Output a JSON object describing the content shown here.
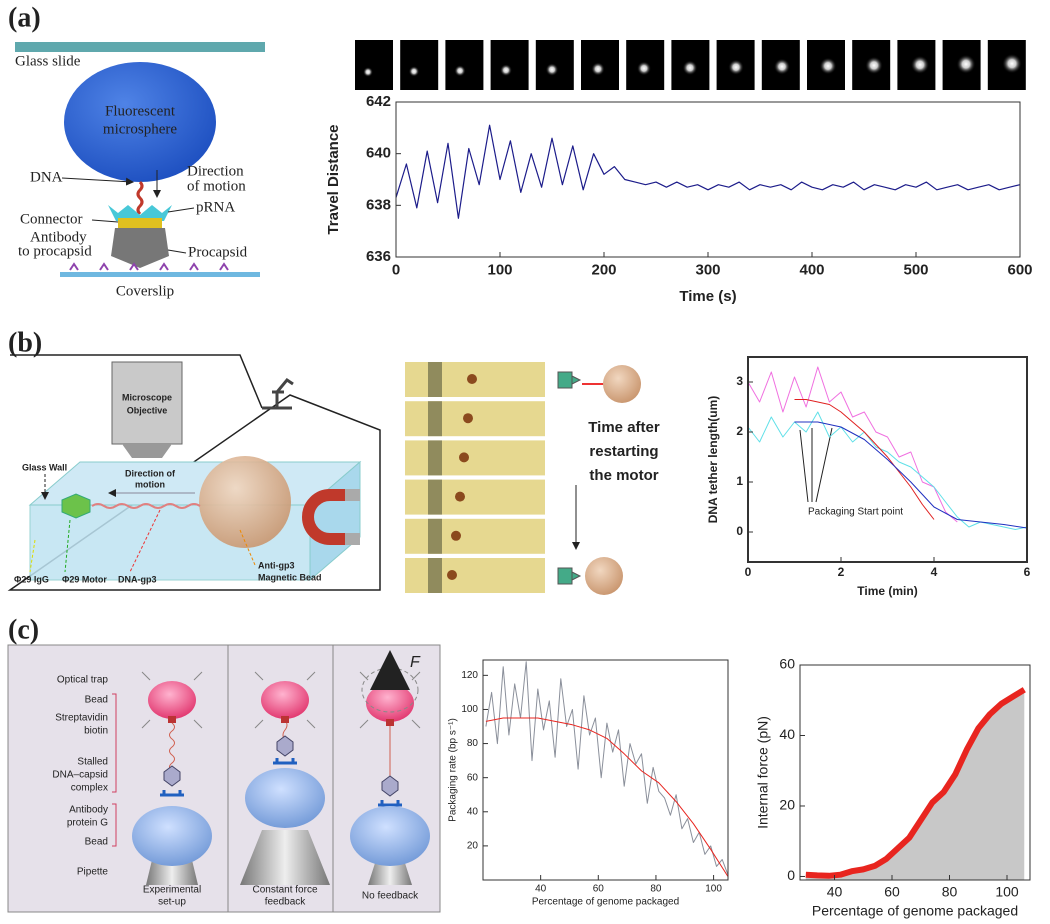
{
  "panels": {
    "a": {
      "label": "(a)",
      "glass_slide": "Glass slide",
      "microsphere": [
        "Fluorescent",
        "microsphere"
      ],
      "dna": "DNA",
      "direction": [
        "Direction",
        "of motion"
      ],
      "connector": "Connector",
      "prna": "pRNA",
      "antibody": [
        "Antibody",
        "to procapsid"
      ],
      "procapsid": "Procapsid",
      "coverslip": "Coverslip"
    },
    "b": {
      "label": "(b)",
      "objective": [
        "Microscope",
        "Objective"
      ],
      "glass_wall": "Glass Wall",
      "direction": [
        "Direction of",
        "motion"
      ],
      "igg": "Φ29 IgG",
      "motor": "Φ29 Motor",
      "dna_gp3": "DNA-gp3",
      "bead": [
        "Anti-gp3",
        "Magnetic Bead"
      ],
      "time": [
        "Time after",
        "restarting",
        "the motor"
      ]
    },
    "c": {
      "label": "(c)",
      "optical_trap": "Optical trap",
      "bead_top": "Bead",
      "strept": [
        "Streptavidin",
        "biotin"
      ],
      "complex": [
        "Stalled",
        "DNA–capsid",
        "complex"
      ],
      "antibody": [
        "Antibody",
        "protein G"
      ],
      "bead_bottom": "Bead",
      "pipette": "Pipette",
      "force": "F",
      "cap1": [
        "Experimental",
        "set-up"
      ],
      "cap2": [
        "Constant force",
        "feedback"
      ],
      "cap3": "No feedback"
    }
  },
  "chart_data": [
    {
      "type": "line",
      "xlabel": "Time (s)",
      "ylabel": "Travel Distance",
      "xlim": [
        0,
        600
      ],
      "ylim": [
        636,
        642
      ],
      "xticks": [
        0,
        100,
        200,
        300,
        400,
        500,
        600
      ],
      "yticks": [
        636,
        638,
        640,
        642
      ],
      "series": [
        {
          "color": "#1c1c8a",
          "x": [
            0,
            10,
            20,
            30,
            40,
            50,
            60,
            70,
            80,
            90,
            100,
            110,
            120,
            130,
            140,
            150,
            160,
            170,
            180,
            190,
            200,
            210,
            220,
            230,
            240,
            250,
            260,
            270,
            280,
            290,
            300,
            310,
            320,
            330,
            340,
            350,
            360,
            370,
            380,
            390,
            400,
            410,
            420,
            430,
            440,
            450,
            460,
            470,
            480,
            490,
            500,
            510,
            520,
            530,
            540,
            550,
            560,
            570,
            580,
            590,
            600
          ],
          "values": [
            638.3,
            639.6,
            637.9,
            640.1,
            638.1,
            640.4,
            637.5,
            640.2,
            638.8,
            641.1,
            639.0,
            640.5,
            638.5,
            640.0,
            638.7,
            640.6,
            638.8,
            640.3,
            638.6,
            640.0,
            639.2,
            639.5,
            639.0,
            638.9,
            638.8,
            638.9,
            638.7,
            638.9,
            638.7,
            638.8,
            638.6,
            638.8,
            638.7,
            638.9,
            638.6,
            638.8,
            638.7,
            638.8,
            638.6,
            638.9,
            638.7,
            638.6,
            638.8,
            638.7,
            638.9,
            638.6,
            638.8,
            638.7,
            638.6,
            638.8,
            638.7,
            638.9,
            638.6,
            638.7,
            638.8,
            638.6,
            638.7,
            638.8,
            638.6,
            638.7,
            638.8
          ]
        }
      ]
    },
    {
      "type": "line",
      "xlabel": "Time (min)",
      "ylabel": "DNA tether length(um)",
      "annotation": "Packaging Start point",
      "xlim": [
        0,
        6
      ],
      "ylim": [
        -0.6,
        3.5
      ],
      "xticks": [
        0,
        2,
        4,
        6
      ],
      "yticks": [
        0,
        1,
        2,
        3
      ],
      "series": [
        {
          "color": "#f070e0",
          "x": [
            0,
            0.25,
            0.5,
            0.75,
            1,
            1.25,
            1.5,
            1.75,
            2,
            2.25,
            2.5,
            2.75,
            3,
            3.25,
            3.5,
            3.75,
            4,
            4.25,
            4.5
          ],
          "values": [
            3.0,
            2.6,
            3.2,
            2.4,
            3.1,
            2.5,
            3.3,
            2.6,
            2.8,
            2.3,
            2.4,
            2.0,
            1.9,
            1.5,
            1.6,
            1.0,
            0.9,
            0.4,
            0.2
          ]
        },
        {
          "color": "#60e0e8",
          "x": [
            0,
            0.25,
            0.5,
            0.75,
            1,
            1.25,
            1.5,
            1.75,
            2,
            2.25,
            2.5,
            2.75,
            3,
            3.25,
            3.5,
            3.75,
            4,
            4.25,
            4.5,
            4.75,
            5,
            5.25,
            5.5,
            5.75,
            6
          ],
          "values": [
            2.1,
            1.8,
            2.3,
            1.9,
            2.2,
            2.0,
            2.4,
            1.9,
            2.1,
            1.8,
            2.0,
            1.7,
            1.6,
            1.4,
            1.3,
            1.1,
            0.9,
            0.6,
            0.3,
            0.1,
            0.2,
            0.15,
            0.1,
            0.05,
            0.1
          ]
        },
        {
          "color": "#e02020",
          "x": [
            1,
            1.25,
            1.5,
            1.75,
            2,
            2.25,
            2.5,
            2.75,
            3,
            3.25,
            3.5,
            3.75,
            4
          ],
          "values": [
            2.65,
            2.65,
            2.6,
            2.55,
            2.4,
            2.2,
            2.0,
            1.75,
            1.5,
            1.2,
            0.9,
            0.55,
            0.25
          ]
        },
        {
          "color": "#2030c0",
          "x": [
            1,
            1.5,
            2,
            2.5,
            3,
            3.5,
            4,
            4.5,
            5,
            5.5,
            6
          ],
          "values": [
            2.2,
            2.2,
            2.1,
            1.85,
            1.45,
            1.0,
            0.5,
            0.25,
            0.2,
            0.15,
            0.08
          ]
        }
      ]
    },
    {
      "type": "line",
      "xlabel": "Percentage of genome packaged",
      "ylabel": "Packaging rate (bp s⁻¹)",
      "xlim": [
        20,
        105
      ],
      "ylim": [
        0,
        129
      ],
      "xticks": [
        40,
        60,
        80,
        100
      ],
      "yticks": [
        20,
        40,
        60,
        80,
        100,
        120
      ],
      "series": [
        {
          "color": "#8a8f9a",
          "x": [
            21,
            23,
            25,
            27,
            29,
            31,
            33,
            35,
            37,
            39,
            41,
            43,
            45,
            47,
            49,
            51,
            53,
            55,
            57,
            59,
            61,
            63,
            65,
            67,
            69,
            71,
            73,
            75,
            77,
            79,
            81,
            83,
            85,
            87,
            89,
            91,
            93,
            95,
            97,
            99,
            101,
            103,
            105
          ],
          "values": [
            90,
            110,
            80,
            125,
            85,
            115,
            95,
            128,
            70,
            112,
            88,
            105,
            72,
            118,
            90,
            100,
            65,
            108,
            85,
            95,
            60,
            92,
            75,
            88,
            55,
            80,
            68,
            74,
            45,
            66,
            52,
            48,
            38,
            50,
            30,
            36,
            22,
            28,
            15,
            20,
            8,
            12,
            3
          ]
        },
        {
          "color": "#e8251f",
          "x": [
            21,
            27,
            33,
            39,
            45,
            51,
            57,
            63,
            69,
            75,
            81,
            87,
            93,
            99,
            105
          ],
          "values": [
            93,
            95,
            95,
            95,
            93,
            91,
            88,
            83,
            74,
            64,
            57,
            46,
            33,
            18,
            2
          ]
        }
      ]
    },
    {
      "type": "area",
      "xlabel": "Percentage of genome packaged",
      "ylabel": "Internal force (pN)",
      "xlim": [
        28,
        108
      ],
      "ylim": [
        -1,
        60
      ],
      "xticks": [
        40,
        60,
        80,
        100
      ],
      "yticks": [
        0,
        20,
        40,
        60
      ],
      "fill": "#c8c8c8",
      "series": [
        {
          "color": "#e8251f",
          "x": [
            30,
            34,
            38,
            42,
            46,
            50,
            54,
            58,
            62,
            66,
            70,
            74,
            78,
            82,
            86,
            90,
            94,
            98,
            102,
            106
          ],
          "values": [
            0.5,
            0.3,
            0.2,
            0.5,
            1.5,
            2,
            3,
            5,
            8,
            11,
            16,
            21,
            24,
            29,
            36,
            42,
            46,
            49,
            51,
            53
          ]
        }
      ]
    }
  ]
}
